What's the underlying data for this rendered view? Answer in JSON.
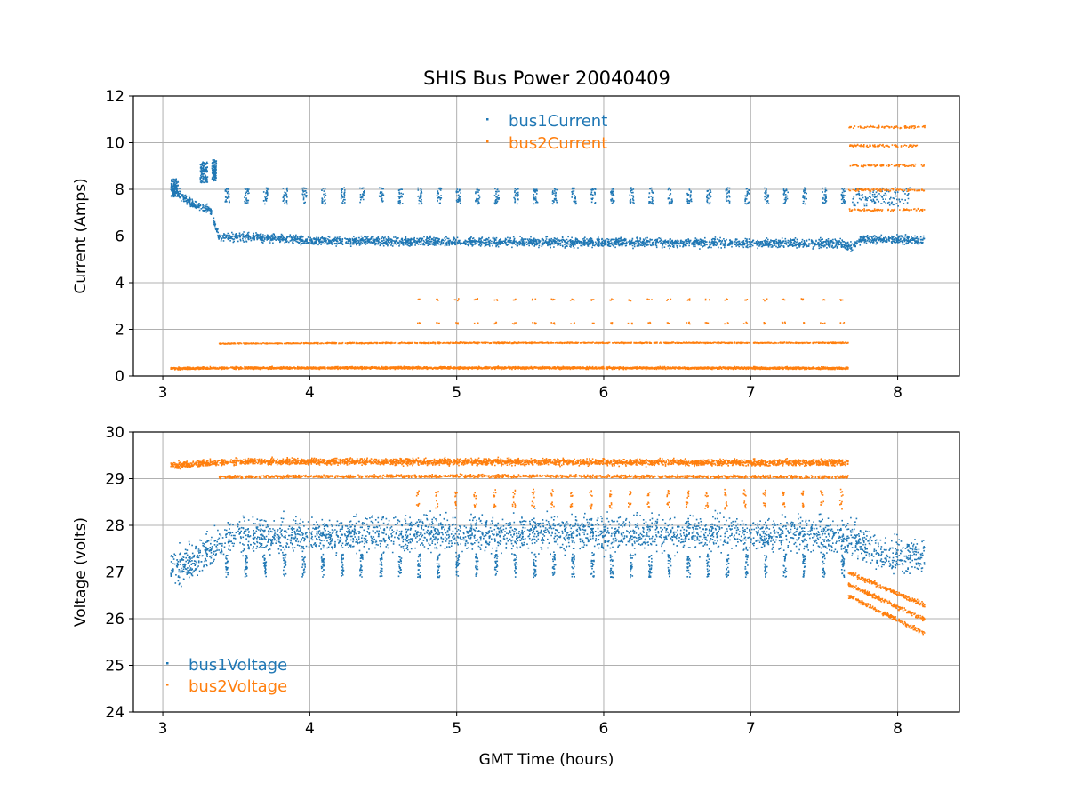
{
  "chart_data": [
    {
      "type": "scatter",
      "title": "SHIS Bus Power 20040409",
      "xlabel": "",
      "ylabel": "Current (Amps)",
      "xlim": [
        2.8,
        8.42
      ],
      "ylim": [
        0,
        12
      ],
      "xticks": [
        "3",
        "4",
        "5",
        "6",
        "7",
        "8"
      ],
      "yticks": [
        "0",
        "2",
        "4",
        "6",
        "8",
        "10",
        "12"
      ],
      "grid": true,
      "legend_position": "top-center",
      "series": [
        {
          "name": "bus1Current",
          "color": "#1f77b4",
          "band": [
            [
              3.05,
              8.1
            ],
            [
              3.2,
              7.4
            ],
            [
              3.32,
              7.1
            ],
            [
              3.38,
              5.95
            ],
            [
              3.6,
              6.0
            ],
            [
              4.0,
              5.82
            ],
            [
              5.0,
              5.78
            ],
            [
              6.0,
              5.75
            ],
            [
              7.0,
              5.73
            ],
            [
              7.6,
              5.72
            ],
            [
              7.68,
              5.55
            ],
            [
              7.75,
              5.9
            ],
            [
              8.18,
              5.85
            ]
          ],
          "band_spread": 0.28,
          "spike_level": 7.9,
          "spike_range": [
            3.42,
            7.62
          ],
          "spike_period": 0.131,
          "extra_bursts": [
            [
              3.05,
              3.1,
              7.7,
              8.5
            ],
            [
              3.25,
              3.3,
              8.3,
              9.2
            ],
            [
              3.33,
              3.36,
              8.4,
              9.3
            ],
            [
              7.68,
              8.08,
              7.3,
              8.1
            ]
          ]
        },
        {
          "name": "bus2Current",
          "color": "#ff7f0e",
          "band": [
            [
              3.05,
              0.35
            ],
            [
              3.5,
              0.37
            ],
            [
              5.0,
              0.38
            ],
            [
              7.0,
              0.37
            ],
            [
              7.66,
              0.36
            ]
          ],
          "band_spread": 0.07,
          "second_band": [
            [
              3.38,
              1.42
            ],
            [
              5.0,
              1.45
            ],
            [
              7.66,
              1.45
            ]
          ],
          "spike_levels": [
            2.3,
            3.3
          ],
          "spike_range": [
            4.72,
            7.62
          ],
          "spike_period": 0.131,
          "late_levels": [
            10.7,
            9.9,
            9.05,
            8.0,
            7.15
          ],
          "late_range": [
            7.66,
            8.18
          ]
        }
      ]
    },
    {
      "type": "scatter",
      "title": "",
      "xlabel": "GMT Time (hours)",
      "ylabel": "Voltage (volts)",
      "xlim": [
        2.8,
        8.42
      ],
      "ylim": [
        24,
        30
      ],
      "xticks": [
        "3",
        "4",
        "5",
        "6",
        "7",
        "8"
      ],
      "yticks": [
        "24",
        "25",
        "26",
        "27",
        "28",
        "29",
        "30"
      ],
      "grid": true,
      "legend_position": "bottom-left",
      "series": [
        {
          "name": "bus1Voltage",
          "color": "#1f77b4",
          "band": [
            [
              3.05,
              27.1
            ],
            [
              3.2,
              27.25
            ],
            [
              3.32,
              27.45
            ],
            [
              3.45,
              27.75
            ],
            [
              4.0,
              27.8
            ],
            [
              5.0,
              27.85
            ],
            [
              6.0,
              27.85
            ],
            [
              7.0,
              27.85
            ],
            [
              7.6,
              27.8
            ],
            [
              7.7,
              27.7
            ],
            [
              7.9,
              27.4
            ],
            [
              8.18,
              27.35
            ]
          ],
          "band_spread": 0.55,
          "dip_level": 27.05,
          "dip_range": [
            3.42,
            7.62
          ],
          "dip_period": 0.131
        },
        {
          "name": "bus2Voltage",
          "color": "#ff7f0e",
          "band": [
            [
              3.05,
              29.3
            ],
            [
              3.5,
              29.38
            ],
            [
              5.0,
              29.38
            ],
            [
              7.0,
              29.36
            ],
            [
              7.66,
              29.36
            ]
          ],
          "band_spread": 0.1,
          "second_band": [
            [
              3.38,
              29.05
            ],
            [
              5.0,
              29.07
            ],
            [
              7.66,
              29.05
            ]
          ],
          "dip_levels": [
            28.7,
            28.45
          ],
          "dip_range": [
            4.72,
            7.62
          ],
          "dip_period": 0.131,
          "late_levels": [
            [
              7.66,
              27.0,
              8.18,
              26.3
            ],
            [
              7.66,
              26.75,
              8.18,
              26.0
            ],
            [
              7.66,
              26.5,
              8.18,
              25.7
            ]
          ],
          "late_range": [
            7.66,
            8.18
          ]
        }
      ]
    }
  ]
}
